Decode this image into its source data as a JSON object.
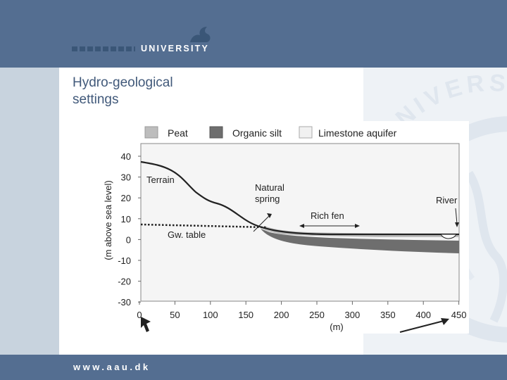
{
  "header": {
    "logo_left": "AALBORG",
    "logo_right": "UNIVERSITY",
    "watermark_text": "UNIVERSITAS AALBORGENSIS"
  },
  "slide": {
    "title_line1": "Hydro-geological",
    "title_line2": "settings"
  },
  "footer": {
    "url": "www.aau.dk"
  },
  "colors": {
    "header": "#546e91",
    "peat": "#bdbdbd",
    "organic_silt": "#6e6e6e",
    "limestone": "#f1f1f1",
    "title": "#41597a"
  },
  "diagram": {
    "legend": [
      {
        "label": "Peat",
        "color": "#bdbdbd"
      },
      {
        "label": "Organic silt",
        "color": "#6e6e6e"
      },
      {
        "label": "Limestone aquifer",
        "color": "#f1f1f1"
      }
    ],
    "y_axis_label": "(m above sea level)",
    "x_axis_label": "(m)",
    "y_ticks": [
      "40",
      "30",
      "20",
      "10",
      "0",
      "-10",
      "-20",
      "-30"
    ],
    "x_ticks": [
      "0",
      "50",
      "100",
      "150",
      "200",
      "250",
      "300",
      "350",
      "400",
      "450"
    ],
    "labels": {
      "terrain": "Terrain",
      "gw_table": "Gw. table",
      "spring_line1": "Natural",
      "spring_line2": "spring",
      "rich_fen": "Rich fen",
      "river": "River"
    }
  }
}
